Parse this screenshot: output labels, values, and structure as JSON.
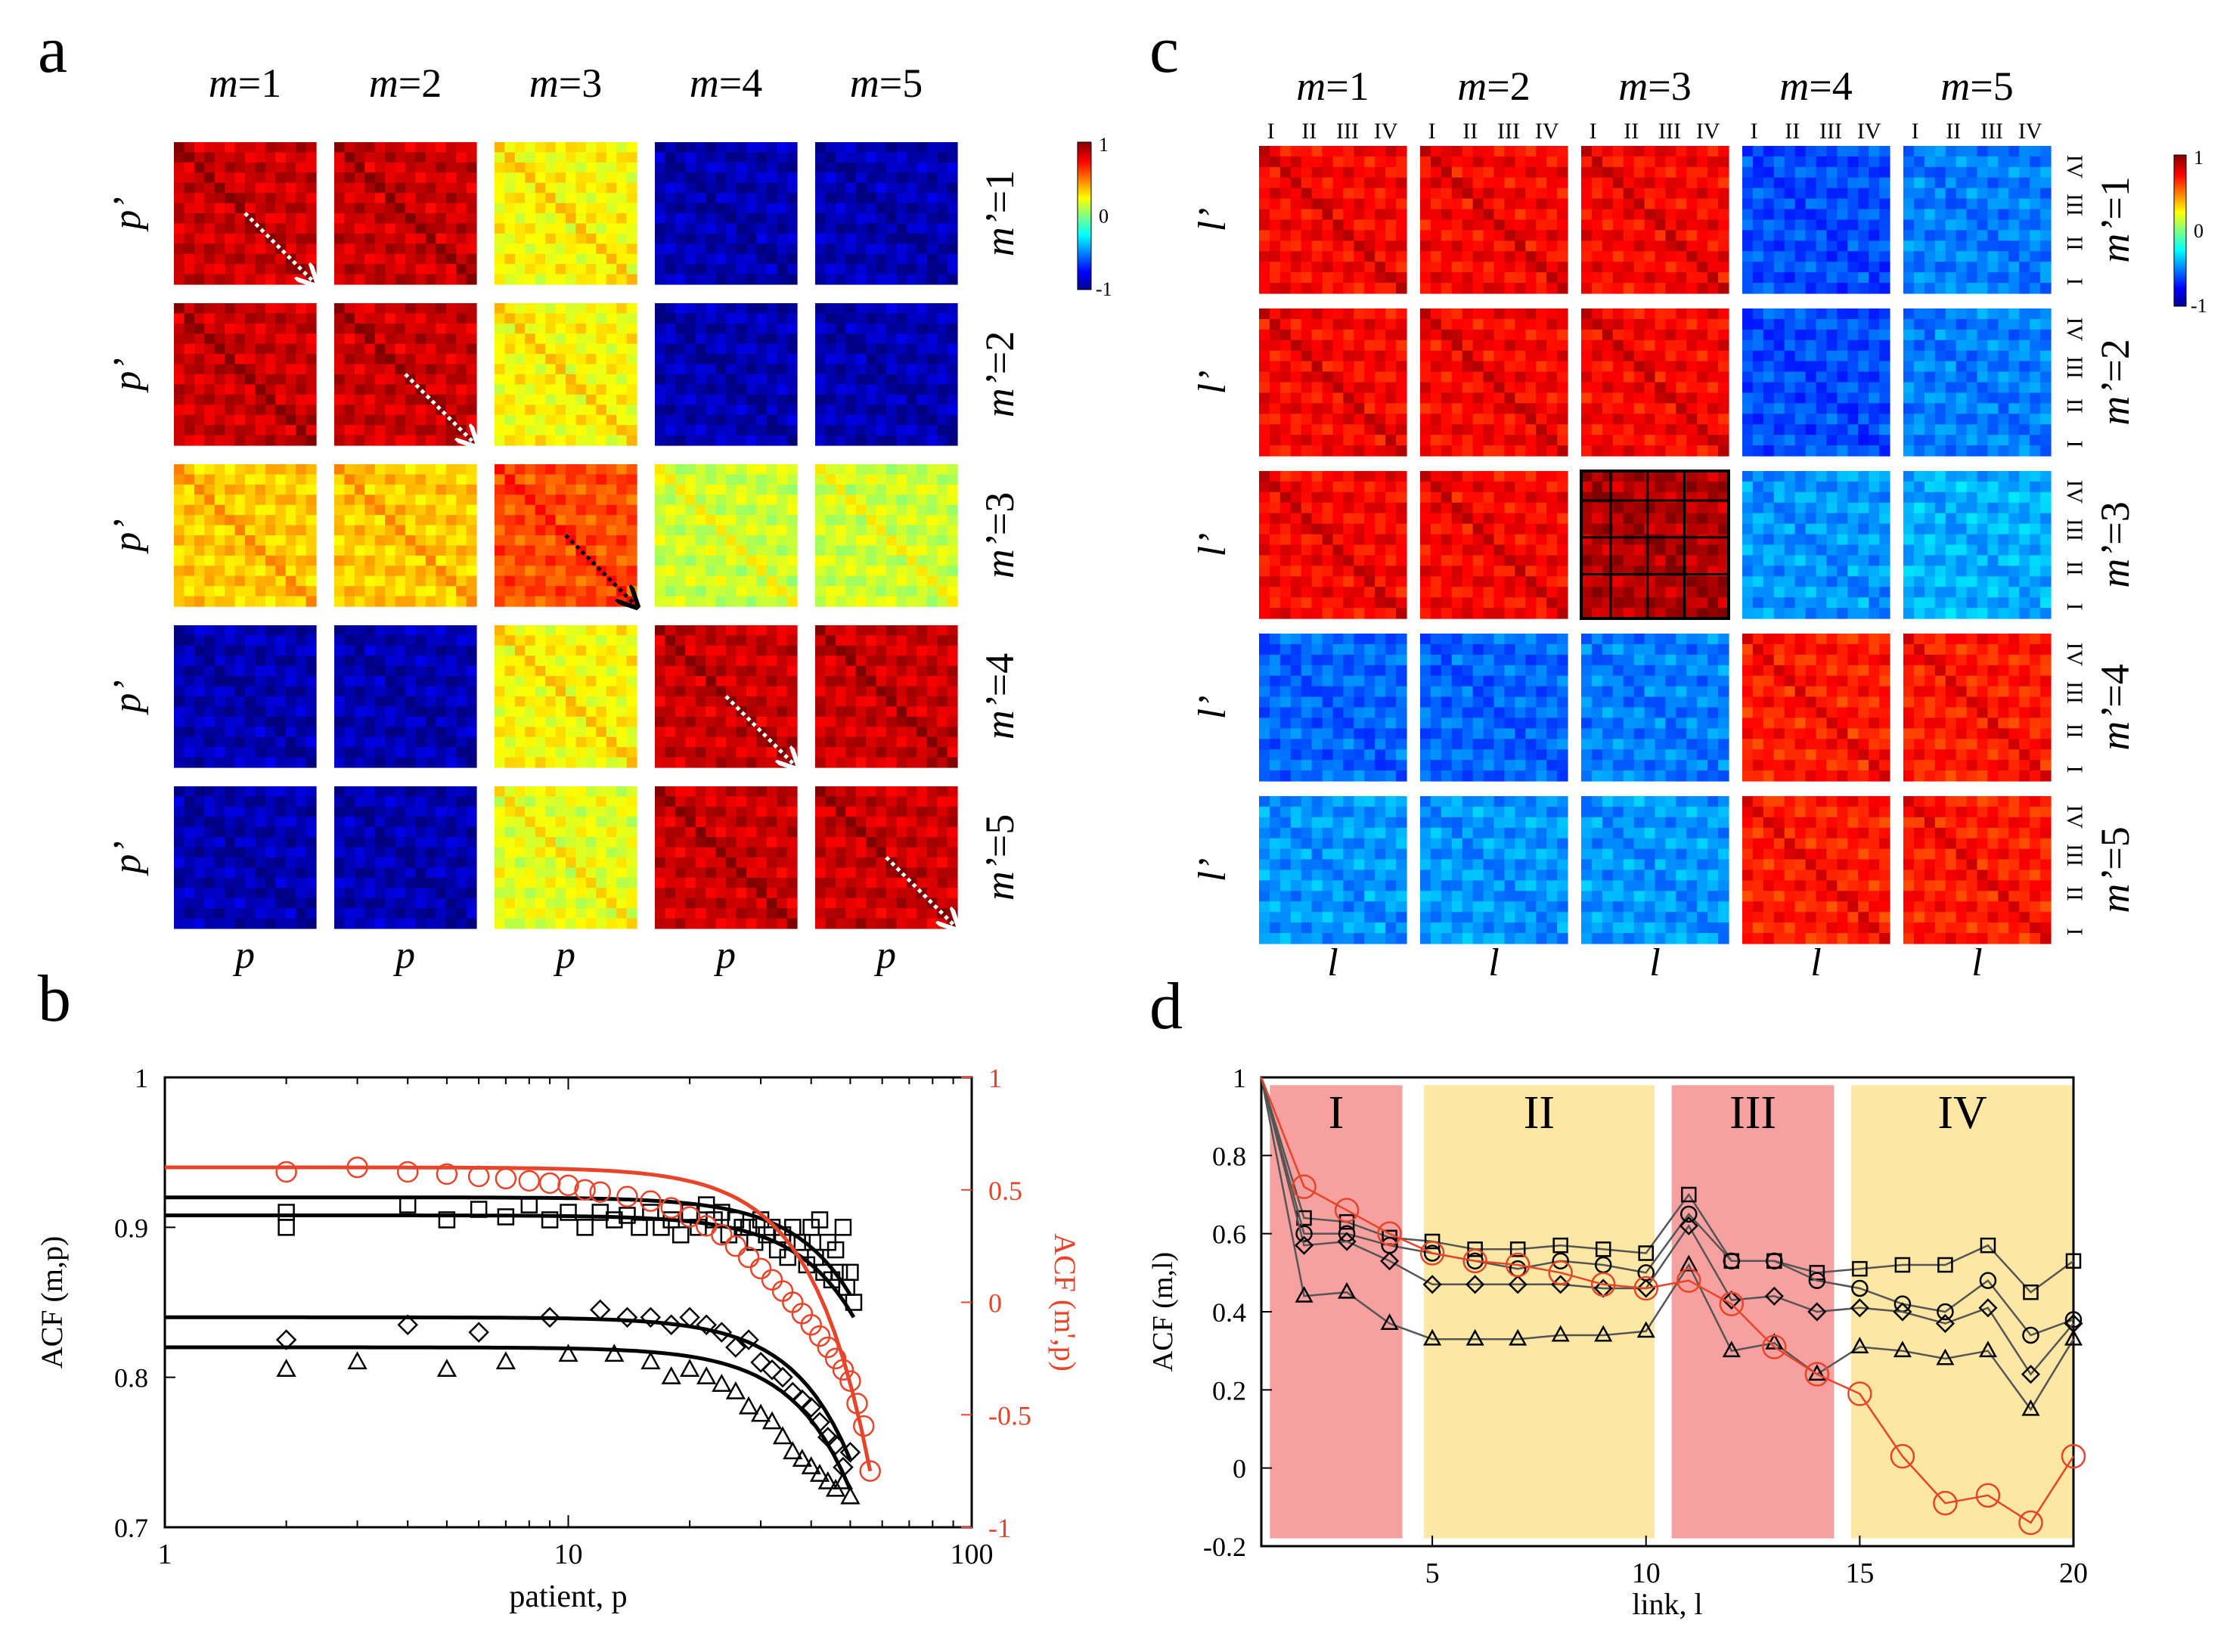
{
  "panel_letters": {
    "a": "a",
    "b": "b",
    "c": "c",
    "d": "d"
  },
  "colors": {
    "red_series": "#e8442a",
    "black_series": "#000000",
    "band_red": "#f7a0a0",
    "band_yellow": "#fde7a4",
    "heatmap_colormap": [
      "#00008f",
      "#0000ff",
      "#0080ff",
      "#00ffff",
      "#80ff80",
      "#ffff00",
      "#ff8000",
      "#ff0000",
      "#800000"
    ]
  },
  "panel_a": {
    "col_labels": [
      "m=1",
      "m=2",
      "m=3",
      "m=4",
      "m=5"
    ],
    "row_labels": [
      "m’=1",
      "m’=2",
      "m’=3",
      "m’=4",
      "m’=5"
    ],
    "y_axis_label": "p’",
    "x_axis_label": "p",
    "colorbar": {
      "max_label": "1",
      "mid_label": "0",
      "min_label": "-1"
    },
    "cell_levels": [
      [
        0.85,
        0.85,
        0.25,
        -0.9,
        -0.9
      ],
      [
        0.85,
        0.85,
        0.25,
        -0.9,
        -0.9
      ],
      [
        0.35,
        0.35,
        0.6,
        0.15,
        0.15
      ],
      [
        -0.9,
        -0.9,
        0.25,
        0.85,
        0.85
      ],
      [
        -0.9,
        -0.9,
        0.2,
        0.85,
        0.85
      ]
    ]
  },
  "panel_c": {
    "col_labels": [
      "m=1",
      "m=2",
      "m=3",
      "m=4",
      "m=5"
    ],
    "row_labels": [
      "m’=1",
      "m’=2",
      "m’=3",
      "m’=4",
      "m’=5"
    ],
    "segment_labels": [
      "I",
      "II",
      "III",
      "IV"
    ],
    "y_axis_label": "l’",
    "x_axis_label": "l",
    "colorbar": {
      "max_label": "1",
      "mid_label": "0",
      "min_label": "-1"
    },
    "cell_levels": [
      [
        0.75,
        0.75,
        0.75,
        -0.6,
        -0.5
      ],
      [
        0.75,
        0.75,
        0.75,
        -0.6,
        -0.5
      ],
      [
        0.75,
        0.75,
        0.9,
        -0.45,
        -0.4
      ],
      [
        -0.55,
        -0.55,
        -0.5,
        0.7,
        0.7
      ],
      [
        -0.45,
        -0.45,
        -0.45,
        0.7,
        0.7
      ]
    ]
  },
  "chart_data": [
    {
      "type": "scatter",
      "panel": "b",
      "xlabel": "patient, p",
      "ylabel_left": "ACF (m,p)",
      "ylabel_right": "ACF (m',p)",
      "xscale": "log",
      "xlim": [
        1,
        100
      ],
      "ylim_left": [
        0.7,
        1
      ],
      "ylim_right": [
        -1,
        1
      ],
      "x_ticks": [
        1,
        10,
        100
      ],
      "x_tick_labels": [
        "1",
        "10",
        "100"
      ],
      "y_left_ticks": [
        0.7,
        0.8,
        0.9,
        1
      ],
      "y_left_tick_labels": [
        "0.7",
        "0.8",
        "0.9",
        "1"
      ],
      "y_right_ticks": [
        -1,
        -0.5,
        0,
        0.5,
        1
      ],
      "y_right_tick_labels": [
        "-1",
        "-0.5",
        "0",
        "0.5",
        "1"
      ],
      "series": [
        {
          "name": "square-upper",
          "marker": "square",
          "axis": "left",
          "color": "#000000",
          "fit": {
            "plateau": 0.92,
            "end_value": 0.855
          },
          "x": [
            2,
            4,
            6,
            8,
            10,
            12,
            14,
            16,
            18,
            20,
            22,
            24,
            26,
            28,
            30,
            32,
            34,
            36,
            38,
            40,
            42,
            44,
            46,
            48,
            50
          ],
          "y": [
            0.91,
            0.915,
            0.912,
            0.915,
            0.91,
            0.91,
            0.908,
            0.91,
            0.905,
            0.91,
            0.915,
            0.91,
            0.905,
            0.9,
            0.905,
            0.9,
            0.895,
            0.9,
            0.89,
            0.9,
            0.905,
            0.89,
            0.885,
            0.9,
            0.87
          ]
        },
        {
          "name": "square-lower",
          "marker": "square",
          "axis": "left",
          "color": "#000000",
          "fit": {
            "plateau": 0.908,
            "end_value": 0.84
          },
          "x": [
            2,
            5,
            7,
            9,
            11,
            13,
            15,
            17,
            19,
            21,
            23,
            25,
            27,
            29,
            31,
            33,
            35,
            37,
            39,
            41,
            43,
            45,
            47,
            49,
            51
          ],
          "y": [
            0.9,
            0.905,
            0.907,
            0.905,
            0.9,
            0.905,
            0.9,
            0.9,
            0.895,
            0.9,
            0.905,
            0.895,
            0.9,
            0.89,
            0.895,
            0.885,
            0.88,
            0.89,
            0.875,
            0.88,
            0.87,
            0.865,
            0.87,
            0.86,
            0.85
          ]
        },
        {
          "name": "diamond",
          "marker": "diamond",
          "axis": "left",
          "color": "#000000",
          "fit": {
            "plateau": 0.84,
            "end_value": 0.745
          },
          "x": [
            2,
            4,
            6,
            9,
            12,
            14,
            16,
            18,
            20,
            22,
            24,
            26,
            28,
            30,
            32,
            34,
            36,
            38,
            40,
            42,
            44,
            46,
            48,
            50
          ],
          "y": [
            0.825,
            0.835,
            0.83,
            0.84,
            0.845,
            0.84,
            0.84,
            0.835,
            0.84,
            0.835,
            0.83,
            0.82,
            0.825,
            0.81,
            0.805,
            0.8,
            0.79,
            0.785,
            0.78,
            0.77,
            0.76,
            0.755,
            0.74,
            0.75
          ]
        },
        {
          "name": "triangle",
          "marker": "triangle",
          "axis": "left",
          "color": "#000000",
          "fit": {
            "plateau": 0.82,
            "end_value": 0.725
          },
          "x": [
            2,
            3,
            5,
            7,
            10,
            13,
            16,
            18,
            20,
            22,
            24,
            26,
            28,
            30,
            32,
            34,
            36,
            38,
            40,
            42,
            44,
            46,
            48,
            50
          ],
          "y": [
            0.805,
            0.81,
            0.805,
            0.81,
            0.815,
            0.815,
            0.81,
            0.8,
            0.805,
            0.8,
            0.795,
            0.79,
            0.78,
            0.775,
            0.77,
            0.76,
            0.75,
            0.745,
            0.74,
            0.735,
            0.73,
            0.725,
            0.73,
            0.72
          ]
        },
        {
          "name": "circle",
          "marker": "circle",
          "axis": "right",
          "color": "#e8442a",
          "fit": {
            "plateau": 0.6,
            "end_value": -0.75
          },
          "x": [
            2,
            3,
            4,
            5,
            6,
            7,
            8,
            9,
            10,
            11,
            12,
            14,
            16,
            18,
            20,
            22,
            24,
            26,
            28,
            30,
            32,
            34,
            36,
            38,
            40,
            42,
            44,
            46,
            48,
            50,
            52,
            54,
            56
          ],
          "y": [
            0.58,
            0.6,
            0.58,
            0.57,
            0.56,
            0.55,
            0.54,
            0.53,
            0.52,
            0.5,
            0.49,
            0.47,
            0.45,
            0.42,
            0.38,
            0.34,
            0.3,
            0.25,
            0.2,
            0.15,
            0.1,
            0.05,
            0.0,
            -0.05,
            -0.1,
            -0.15,
            -0.2,
            -0.25,
            -0.3,
            -0.35,
            -0.45,
            -0.55,
            -0.75
          ]
        }
      ]
    },
    {
      "type": "line",
      "panel": "d",
      "xlabel": "link, l",
      "ylabel": "ACF (m,l)",
      "xlim": [
        1,
        20
      ],
      "ylim": [
        -0.2,
        1
      ],
      "x_ticks": [
        5,
        10,
        15,
        20
      ],
      "x_tick_labels": [
        "5",
        "10",
        "15",
        "20"
      ],
      "y_ticks": [
        -0.2,
        0,
        0.2,
        0.4,
        0.6,
        0.8,
        1
      ],
      "y_tick_labels": [
        "-0.2",
        "0",
        "0.2",
        "0.4",
        "0.6",
        "0.8",
        "1"
      ],
      "bands": [
        {
          "label": "I",
          "x_from": 1.2,
          "x_to": 4.3,
          "color": "red"
        },
        {
          "label": "II",
          "x_from": 4.8,
          "x_to": 10.2,
          "color": "yellow"
        },
        {
          "label": "III",
          "x_from": 10.6,
          "x_to": 14.4,
          "color": "red"
        },
        {
          "label": "IV",
          "x_from": 14.8,
          "x_to": 20,
          "color": "yellow"
        }
      ],
      "x": [
        1,
        2,
        3,
        4,
        5,
        6,
        7,
        8,
        9,
        10,
        11,
        12,
        13,
        14,
        15,
        16,
        17,
        18,
        19,
        20
      ],
      "series": [
        {
          "name": "square",
          "marker": "square",
          "color": "#000000",
          "line_color": "#555555",
          "y": [
            1,
            0.64,
            0.63,
            0.59,
            0.58,
            0.56,
            0.56,
            0.57,
            0.56,
            0.55,
            0.7,
            0.53,
            0.53,
            0.5,
            0.51,
            0.52,
            0.52,
            0.57,
            0.45,
            0.53
          ]
        },
        {
          "name": "circle-black",
          "marker": "circle",
          "color": "#000000",
          "line_color": "#555555",
          "y": [
            1,
            0.6,
            0.6,
            0.57,
            0.55,
            0.53,
            0.51,
            0.53,
            0.52,
            0.5,
            0.65,
            0.53,
            0.53,
            0.48,
            0.46,
            0.42,
            0.4,
            0.48,
            0.34,
            0.38
          ]
        },
        {
          "name": "diamond",
          "marker": "diamond",
          "color": "#000000",
          "line_color": "#555555",
          "y": [
            1,
            0.57,
            0.58,
            0.53,
            0.47,
            0.47,
            0.47,
            0.47,
            0.46,
            0.46,
            0.62,
            0.43,
            0.44,
            0.4,
            0.41,
            0.4,
            0.37,
            0.41,
            0.24,
            0.37
          ]
        },
        {
          "name": "triangle",
          "marker": "triangle",
          "color": "#000000",
          "line_color": "#555555",
          "y": [
            1,
            0.44,
            0.45,
            0.37,
            0.33,
            0.33,
            0.33,
            0.34,
            0.34,
            0.35,
            0.52,
            0.3,
            0.32,
            0.24,
            0.31,
            0.3,
            0.28,
            0.3,
            0.15,
            0.33
          ]
        },
        {
          "name": "circle-red",
          "marker": "circle",
          "color": "#e8442a",
          "line_color": "#e8442a",
          "y": [
            1,
            0.72,
            0.66,
            0.6,
            0.55,
            0.53,
            0.52,
            0.5,
            0.47,
            0.46,
            0.48,
            0.42,
            0.31,
            0.24,
            0.19,
            0.03,
            -0.09,
            -0.07,
            -0.14,
            0.03
          ]
        }
      ]
    }
  ]
}
